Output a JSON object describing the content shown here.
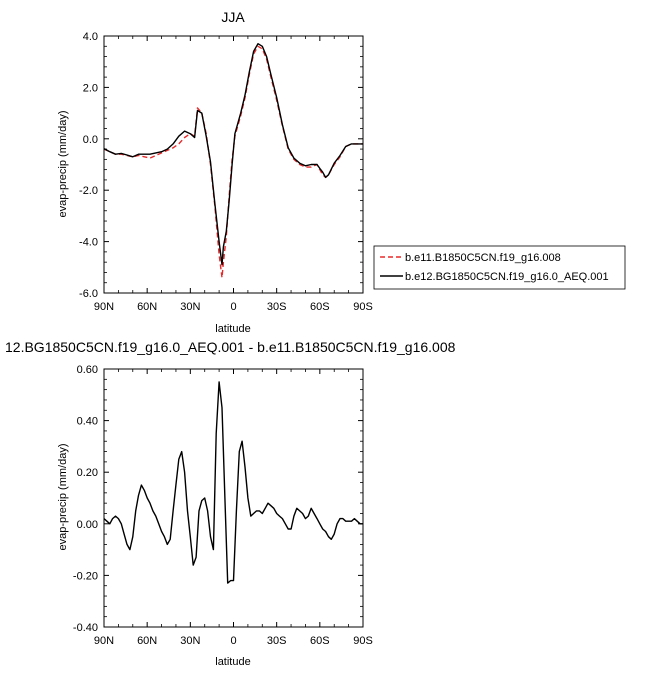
{
  "chart_data": [
    {
      "type": "line",
      "title": "JJA",
      "xlabel": "latitude",
      "ylabel": "evap-precip (mm/day)",
      "xlim": [
        90,
        -90
      ],
      "ylim": [
        -6.0,
        4.0
      ],
      "x_tick_values": [
        90,
        60,
        30,
        0,
        -30,
        -60,
        -90
      ],
      "x_tick_labels": [
        "90N",
        "60N",
        "30N",
        "0",
        "30S",
        "60S",
        "90S"
      ],
      "y_tick_values": [
        4.0,
        2.0,
        0.0,
        -2.0,
        -4.0,
        -6.0
      ],
      "y_tick_labels": [
        "4.0",
        "2.0",
        "0.0",
        "-2.0",
        "-4.0",
        "-6.0"
      ],
      "legend_position": "outside-right",
      "x": [
        90,
        86,
        82,
        78,
        74,
        70,
        66,
        62,
        58,
        54,
        50,
        46,
        42,
        38,
        34,
        30,
        27,
        25,
        22,
        19,
        16,
        13,
        10,
        8,
        7,
        5,
        3,
        1,
        -1,
        -3,
        -5,
        -8,
        -11,
        -14,
        -17,
        -20,
        -23,
        -26,
        -30,
        -34,
        -38,
        -42,
        -46,
        -50,
        -54,
        -58,
        -60,
        -62,
        -64,
        -66,
        -70,
        -74,
        -78,
        -82,
        -86,
        -90
      ],
      "series": [
        {
          "name": "b.e11.B1850C5CN.f19_g16.008",
          "color": "#e8292a",
          "dash": "dashed",
          "values": [
            -0.4,
            -0.5,
            -0.6,
            -0.6,
            -0.65,
            -0.7,
            -0.65,
            -0.7,
            -0.75,
            -0.65,
            -0.55,
            -0.45,
            -0.35,
            -0.2,
            0.05,
            0.2,
            0.1,
            1.2,
            1.0,
            0.2,
            -1.0,
            -2.6,
            -4.5,
            -5.4,
            -4.8,
            -3.8,
            -2.2,
            -0.8,
            0.1,
            0.5,
            0.9,
            1.6,
            2.5,
            3.3,
            3.6,
            3.5,
            3.1,
            2.4,
            1.5,
            0.5,
            -0.4,
            -0.8,
            -1.0,
            -1.1,
            -1.1,
            -1.0,
            -1.2,
            -1.4,
            -1.5,
            -1.4,
            -1.0,
            -0.7,
            -0.3,
            -0.2,
            -0.2,
            -0.2
          ]
        },
        {
          "name": "b.e12.BG1850C5CN.f19_g16.0_AEQ.001",
          "color": "#000000",
          "dash": "solid",
          "values": [
            -0.38,
            -0.5,
            -0.6,
            -0.57,
            -0.63,
            -0.7,
            -0.6,
            -0.6,
            -0.6,
            -0.55,
            -0.5,
            -0.4,
            -0.2,
            0.1,
            0.3,
            0.2,
            0.05,
            1.1,
            1.0,
            0.1,
            -0.9,
            -2.5,
            -4.0,
            -4.9,
            -4.2,
            -3.6,
            -2.4,
            -1.0,
            0.2,
            0.6,
            1.0,
            1.7,
            2.6,
            3.4,
            3.7,
            3.6,
            3.2,
            2.5,
            1.6,
            0.55,
            -0.35,
            -0.75,
            -0.95,
            -1.05,
            -1.0,
            -1.0,
            -1.15,
            -1.3,
            -1.5,
            -1.4,
            -0.95,
            -0.65,
            -0.3,
            -0.2,
            -0.2,
            -0.2
          ]
        }
      ]
    },
    {
      "type": "line",
      "title": "12.BG1850C5CN.f19_g16.0_AEQ.001 - b.e11.B1850C5CN.f19_g16.008",
      "xlabel": "latitude",
      "ylabel": "evap-precip (mm/day)",
      "xlim": [
        90,
        -90
      ],
      "ylim": [
        -0.4,
        0.6
      ],
      "x_tick_values": [
        90,
        60,
        30,
        0,
        -30,
        -60,
        -90
      ],
      "x_tick_labels": [
        "90N",
        "60N",
        "30N",
        "0",
        "30S",
        "60S",
        "90S"
      ],
      "y_tick_values": [
        0.6,
        0.4,
        0.2,
        0.0,
        -0.2,
        -0.4
      ],
      "y_tick_labels": [
        "0.60",
        "0.40",
        "0.20",
        "0.00",
        "-0.20",
        "-0.40"
      ],
      "x": [
        90,
        88,
        86,
        84,
        82,
        80,
        78,
        76,
        74,
        72,
        70,
        68,
        66,
        64,
        62,
        60,
        58,
        56,
        54,
        52,
        50,
        48,
        46,
        44,
        42,
        40,
        38,
        36,
        34,
        32,
        30,
        28,
        26,
        24,
        22,
        20,
        18,
        16,
        14,
        12,
        10,
        8,
        6,
        4,
        2,
        0,
        -2,
        -4,
        -6,
        -8,
        -10,
        -12,
        -14,
        -16,
        -18,
        -20,
        -22,
        -24,
        -26,
        -28,
        -30,
        -32,
        -34,
        -36,
        -38,
        -40,
        -42,
        -44,
        -46,
        -48,
        -50,
        -52,
        -54,
        -56,
        -58,
        -60,
        -62,
        -64,
        -66,
        -68,
        -70,
        -72,
        -74,
        -76,
        -78,
        -80,
        -82,
        -84,
        -86,
        -88,
        -90
      ],
      "series": [
        {
          "name": "",
          "color": "#000000",
          "dash": "solid",
          "values": [
            0.02,
            0.01,
            0.0,
            0.02,
            0.03,
            0.02,
            0.0,
            -0.04,
            -0.08,
            -0.1,
            -0.05,
            0.05,
            0.11,
            0.15,
            0.13,
            0.1,
            0.08,
            0.05,
            0.03,
            0.0,
            -0.03,
            -0.05,
            -0.08,
            -0.06,
            0.05,
            0.15,
            0.25,
            0.28,
            0.2,
            0.05,
            -0.05,
            -0.16,
            -0.13,
            0.05,
            0.09,
            0.1,
            0.05,
            -0.05,
            -0.1,
            0.35,
            0.55,
            0.45,
            0.1,
            -0.23,
            -0.22,
            -0.22,
            0.05,
            0.28,
            0.32,
            0.22,
            0.1,
            0.03,
            0.04,
            0.05,
            0.05,
            0.04,
            0.06,
            0.08,
            0.07,
            0.06,
            0.04,
            0.03,
            0.02,
            0.0,
            -0.02,
            -0.02,
            0.03,
            0.06,
            0.05,
            0.04,
            0.02,
            0.03,
            0.06,
            0.04,
            0.02,
            0.0,
            -0.02,
            -0.03,
            -0.05,
            -0.06,
            -0.04,
            0.0,
            0.02,
            0.02,
            0.01,
            0.01,
            0.01,
            0.02,
            0.01,
            0.0,
            0.0
          ]
        }
      ]
    }
  ]
}
